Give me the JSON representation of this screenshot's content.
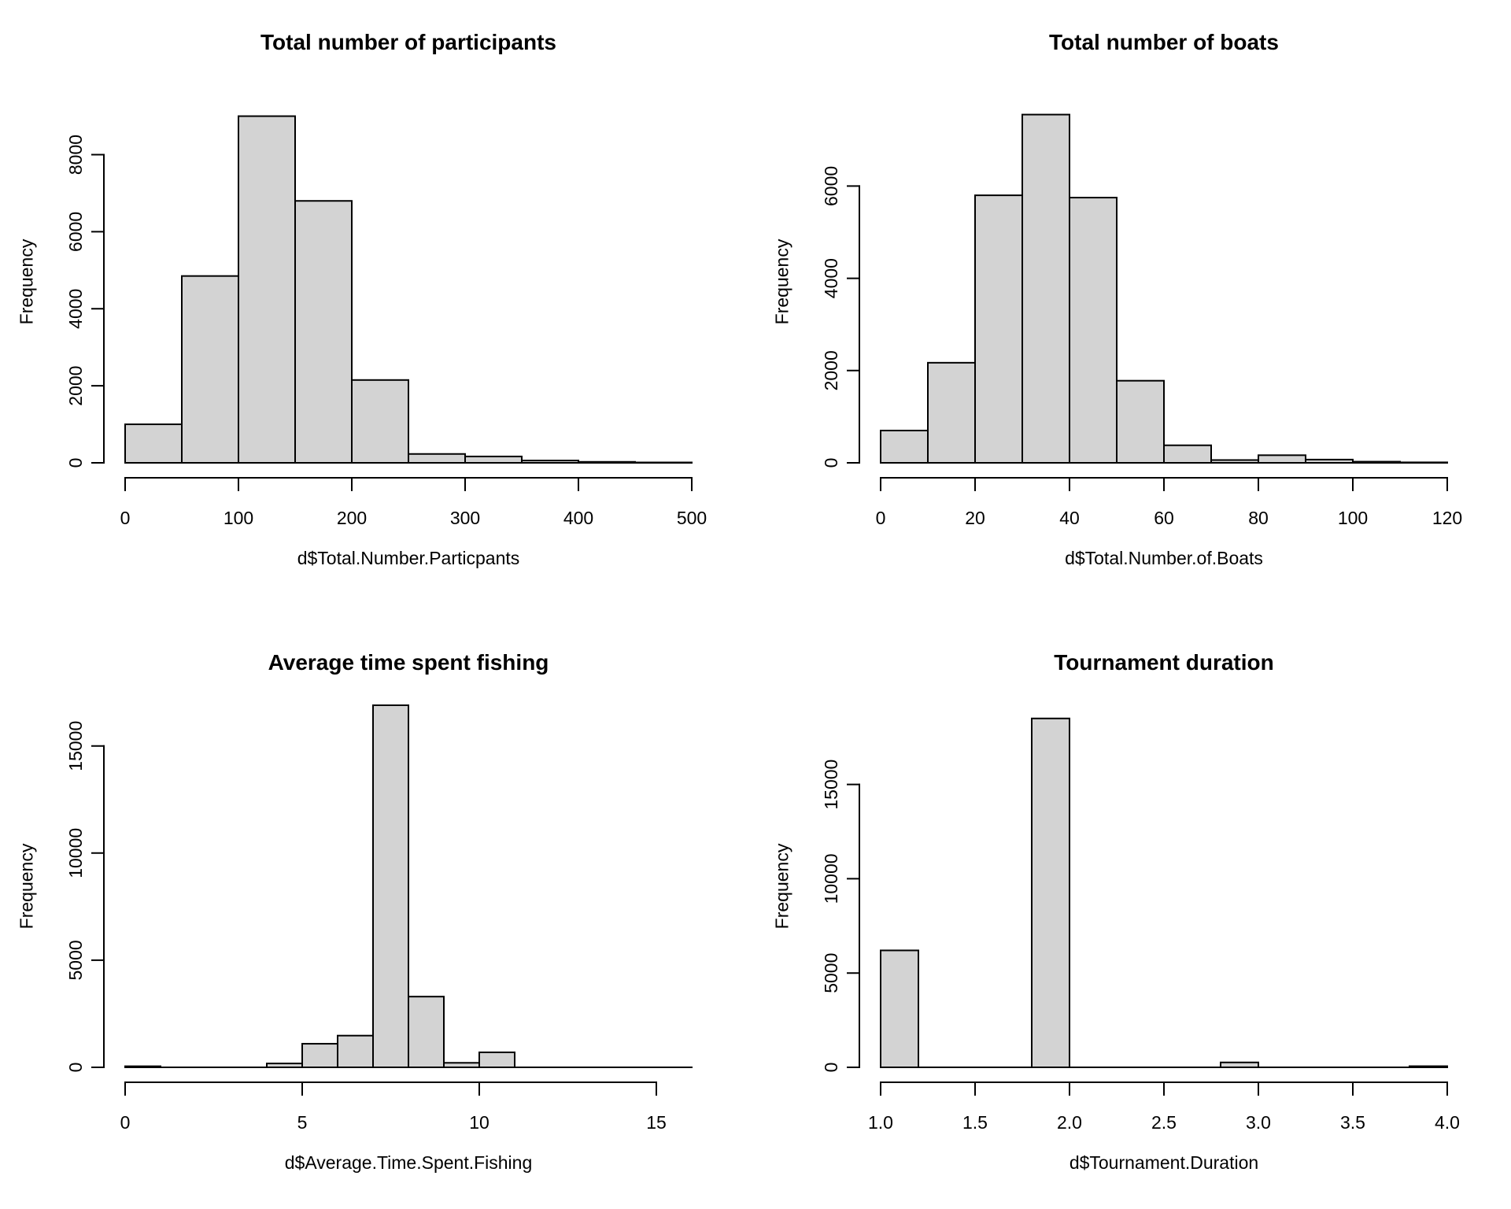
{
  "figure": {
    "background": "#ffffff",
    "bar_fill": "#d3d3d3",
    "bar_stroke": "#000000",
    "axis_color": "#000000"
  },
  "chart_data": [
    {
      "type": "bar",
      "subtype": "histogram",
      "title": "Total number of participants",
      "xlabel": "d$Total.Number.Particpants",
      "ylabel": "Frequency",
      "bin_start": 0,
      "bin_width": 50,
      "values": [
        1000,
        4850,
        9000,
        6800,
        2150,
        230,
        165,
        60,
        25,
        10
      ],
      "x_tick_values": [
        0,
        100,
        200,
        300,
        400,
        500
      ],
      "x_tick_labels": [
        "0",
        "100",
        "200",
        "300",
        "400",
        "500"
      ],
      "y_tick_values": [
        0,
        2000,
        4000,
        6000,
        8000
      ],
      "y_tick_labels": [
        "0",
        "2000",
        "4000",
        "6000",
        "8000"
      ],
      "xlim": [
        0,
        500
      ],
      "ylim": [
        0,
        9400
      ],
      "grid": false,
      "legend": "none"
    },
    {
      "type": "bar",
      "subtype": "histogram",
      "title": "Total number of boats",
      "xlabel": "d$Total.Number.of.Boats",
      "ylabel": "Frequency",
      "bin_start": 0,
      "bin_width": 10,
      "values": [
        700,
        2170,
        5800,
        7550,
        5750,
        1780,
        380,
        60,
        165,
        70,
        25,
        10
      ],
      "x_tick_values": [
        0,
        20,
        40,
        60,
        80,
        100,
        120
      ],
      "x_tick_labels": [
        "0",
        "20",
        "40",
        "60",
        "80",
        "100",
        "120"
      ],
      "y_tick_values": [
        0,
        2000,
        4000,
        6000
      ],
      "y_tick_labels": [
        "0",
        "2000",
        "4000",
        "6000"
      ],
      "xlim": [
        0,
        120
      ],
      "ylim": [
        0,
        7850
      ],
      "grid": false,
      "legend": "none"
    },
    {
      "type": "bar",
      "subtype": "histogram",
      "title": "Average time spent fishing",
      "xlabel": "d$Average.Time.Spent.Fishing",
      "ylabel": "Frequency",
      "bin_start": 0,
      "bin_width": 1,
      "values": [
        50,
        0,
        0,
        0,
        180,
        1100,
        1480,
        16900,
        3300,
        210,
        700,
        0,
        0,
        0,
        0,
        0
      ],
      "x_tick_values": [
        0,
        5,
        10,
        15
      ],
      "x_tick_labels": [
        "0",
        "5",
        "10",
        "15"
      ],
      "y_tick_values": [
        0,
        5000,
        10000,
        15000
      ],
      "y_tick_labels": [
        "0",
        "5000",
        "10000",
        "15000"
      ],
      "xlim": [
        0,
        16
      ],
      "ylim": [
        0,
        16900
      ],
      "grid": false,
      "legend": "none"
    },
    {
      "type": "bar",
      "subtype": "histogram",
      "title": "Tournament duration",
      "xlabel": "d$Tournament.Duration",
      "ylabel": "Frequency",
      "bin_start": 1.0,
      "bin_width": 0.2,
      "values": [
        6200,
        0,
        0,
        0,
        18500,
        0,
        0,
        0,
        0,
        260,
        0,
        0,
        0,
        0,
        60
      ],
      "x_tick_values": [
        1.0,
        1.5,
        2.0,
        2.5,
        3.0,
        3.5,
        4.0
      ],
      "x_tick_labels": [
        "1.0",
        "1.5",
        "2.0",
        "2.5",
        "3.0",
        "3.5",
        "4.0"
      ],
      "y_tick_values": [
        0,
        5000,
        10000,
        15000
      ],
      "y_tick_labels": [
        "0",
        "5000",
        "10000",
        "15000"
      ],
      "xlim": [
        1.0,
        4.0
      ],
      "ylim": [
        0,
        19200
      ],
      "grid": false,
      "legend": "none"
    }
  ]
}
